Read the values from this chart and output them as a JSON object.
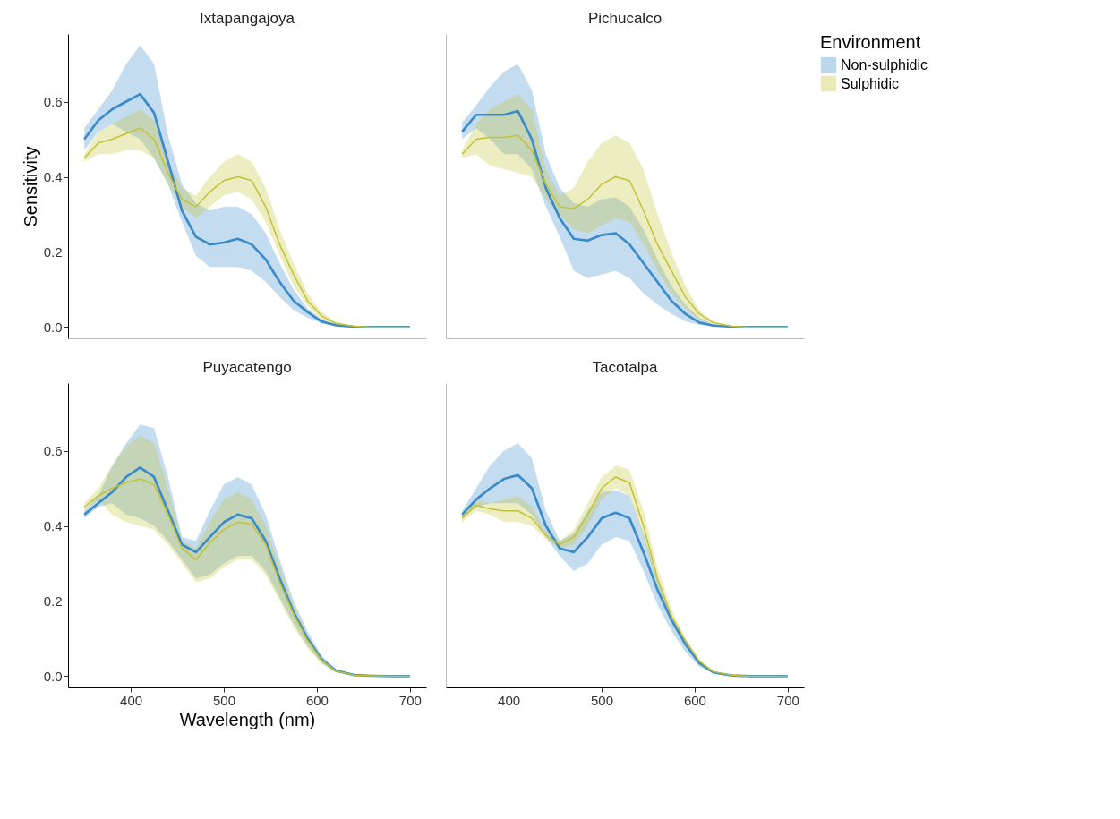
{
  "chart_data": [
    {
      "type": "line",
      "title": "Ixtapangajoya",
      "ylabel": "Sensitivity",
      "grid": false,
      "tick_labels": "y",
      "xlim": [
        332.5,
        717.5
      ],
      "ylim": [
        -0.03,
        0.78
      ],
      "yticks": [
        {
          "value": 0,
          "label": "0.0"
        },
        {
          "value": 0.2,
          "label": "0.2"
        },
        {
          "value": 0.4,
          "label": "0.4"
        },
        {
          "value": 0.6,
          "label": "0.6"
        }
      ],
      "x": [
        350,
        365,
        380,
        395,
        410,
        425,
        440,
        455,
        470,
        485,
        500,
        515,
        530,
        545,
        560,
        575,
        590,
        605,
        620,
        640,
        660,
        680,
        700
      ],
      "series": [
        {
          "color": "#3b8bc9",
          "values": [
            0.5,
            0.55,
            0.58,
            0.6,
            0.62,
            0.57,
            0.44,
            0.31,
            0.24,
            0.22,
            0.225,
            0.235,
            0.22,
            0.18,
            0.12,
            0.07,
            0.04,
            0.015,
            0.005,
            0.001,
            0,
            0,
            0
          ],
          "upper": [
            0.53,
            0.58,
            0.63,
            0.7,
            0.75,
            0.7,
            0.51,
            0.38,
            0.33,
            0.31,
            0.32,
            0.32,
            0.3,
            0.25,
            0.17,
            0.1,
            0.05,
            0.02,
            0.007,
            0.002,
            0,
            0,
            0
          ],
          "lower": [
            0.47,
            0.52,
            0.54,
            0.52,
            0.5,
            0.45,
            0.38,
            0.28,
            0.19,
            0.16,
            0.16,
            0.16,
            0.15,
            0.12,
            0.08,
            0.045,
            0.025,
            0.01,
            0.003,
            0,
            0,
            0,
            0
          ]
        },
        {
          "color": "#c3c234",
          "values": [
            0.45,
            0.49,
            0.5,
            0.515,
            0.53,
            0.5,
            0.41,
            0.34,
            0.32,
            0.36,
            0.39,
            0.4,
            0.39,
            0.32,
            0.22,
            0.14,
            0.07,
            0.03,
            0.01,
            0.002,
            0,
            0,
            0
          ],
          "upper": [
            0.46,
            0.52,
            0.54,
            0.56,
            0.58,
            0.55,
            0.44,
            0.37,
            0.35,
            0.4,
            0.44,
            0.46,
            0.44,
            0.37,
            0.26,
            0.17,
            0.09,
            0.04,
            0.015,
            0.003,
            0,
            0,
            0
          ],
          "lower": [
            0.44,
            0.46,
            0.46,
            0.47,
            0.47,
            0.45,
            0.38,
            0.32,
            0.29,
            0.32,
            0.35,
            0.36,
            0.34,
            0.28,
            0.19,
            0.11,
            0.055,
            0.02,
            0.007,
            0.001,
            0,
            0,
            0
          ]
        }
      ]
    },
    {
      "type": "line",
      "title": "Pichucalco",
      "legend_title": "Environment",
      "legend": "right",
      "grid": false,
      "tick_labels": false,
      "xlim": [
        332.5,
        717.5
      ],
      "ylim": [
        -0.03,
        0.78
      ],
      "x": [
        350,
        365,
        380,
        395,
        410,
        425,
        440,
        455,
        470,
        485,
        500,
        515,
        530,
        545,
        560,
        575,
        590,
        605,
        620,
        640,
        660,
        680,
        700
      ],
      "series": [
        {
          "name": "Non-sulphidic",
          "color": "#3b8bc9",
          "values": [
            0.52,
            0.565,
            0.565,
            0.565,
            0.575,
            0.5,
            0.37,
            0.29,
            0.235,
            0.23,
            0.245,
            0.25,
            0.22,
            0.17,
            0.12,
            0.07,
            0.035,
            0.012,
            0.004,
            0.001,
            0,
            0,
            0
          ],
          "upper": [
            0.545,
            0.59,
            0.64,
            0.68,
            0.7,
            0.63,
            0.46,
            0.37,
            0.33,
            0.32,
            0.34,
            0.345,
            0.32,
            0.26,
            0.18,
            0.11,
            0.06,
            0.025,
            0.008,
            0.002,
            0,
            0,
            0
          ],
          "lower": [
            0.5,
            0.53,
            0.5,
            0.46,
            0.46,
            0.42,
            0.32,
            0.24,
            0.15,
            0.13,
            0.14,
            0.15,
            0.13,
            0.09,
            0.06,
            0.035,
            0.015,
            0.006,
            0.002,
            0,
            0,
            0,
            0
          ]
        },
        {
          "name": "Sulphidic",
          "color": "#c3c234",
          "values": [
            0.46,
            0.5,
            0.505,
            0.505,
            0.51,
            0.47,
            0.38,
            0.32,
            0.315,
            0.34,
            0.38,
            0.4,
            0.39,
            0.31,
            0.22,
            0.15,
            0.08,
            0.035,
            0.012,
            0.002,
            0,
            0,
            0
          ],
          "upper": [
            0.47,
            0.54,
            0.58,
            0.6,
            0.62,
            0.58,
            0.42,
            0.35,
            0.37,
            0.44,
            0.49,
            0.51,
            0.49,
            0.42,
            0.3,
            0.2,
            0.11,
            0.045,
            0.015,
            0.003,
            0,
            0,
            0
          ],
          "lower": [
            0.45,
            0.46,
            0.43,
            0.42,
            0.41,
            0.4,
            0.34,
            0.3,
            0.26,
            0.25,
            0.27,
            0.29,
            0.28,
            0.22,
            0.15,
            0.09,
            0.05,
            0.02,
            0.007,
            0.001,
            0,
            0,
            0
          ]
        }
      ]
    },
    {
      "type": "line",
      "title": "Puyacatengo",
      "xlabel": "Wavelength (nm)",
      "grid": false,
      "xlim": [
        332.5,
        717.5
      ],
      "ylim": [
        -0.03,
        0.78
      ],
      "xticks": [
        400,
        500,
        600,
        700
      ],
      "yticks": [
        {
          "value": 0,
          "label": "0.0"
        },
        {
          "value": 0.2,
          "label": "0.2"
        },
        {
          "value": 0.4,
          "label": "0.4"
        },
        {
          "value": 0.6,
          "label": "0.6"
        }
      ],
      "x": [
        350,
        365,
        380,
        395,
        410,
        425,
        440,
        455,
        470,
        485,
        500,
        515,
        530,
        545,
        560,
        575,
        590,
        605,
        620,
        640,
        660,
        680,
        700
      ],
      "series": [
        {
          "color": "#3b8bc9",
          "values": [
            0.43,
            0.46,
            0.49,
            0.53,
            0.555,
            0.53,
            0.44,
            0.35,
            0.33,
            0.37,
            0.41,
            0.43,
            0.42,
            0.36,
            0.26,
            0.17,
            0.1,
            0.045,
            0.015,
            0.003,
            0.001,
            0,
            0
          ],
          "upper": [
            0.44,
            0.48,
            0.56,
            0.62,
            0.67,
            0.66,
            0.53,
            0.37,
            0.36,
            0.44,
            0.51,
            0.53,
            0.51,
            0.43,
            0.31,
            0.2,
            0.12,
            0.055,
            0.02,
            0.004,
            0.001,
            0,
            0
          ],
          "lower": [
            0.42,
            0.45,
            0.46,
            0.43,
            0.42,
            0.4,
            0.36,
            0.31,
            0.26,
            0.27,
            0.3,
            0.32,
            0.32,
            0.28,
            0.21,
            0.14,
            0.08,
            0.035,
            0.012,
            0.002,
            0,
            0,
            0
          ]
        },
        {
          "color": "#c3c234",
          "values": [
            0.45,
            0.48,
            0.5,
            0.515,
            0.525,
            0.51,
            0.43,
            0.34,
            0.31,
            0.355,
            0.39,
            0.41,
            0.405,
            0.35,
            0.25,
            0.165,
            0.095,
            0.043,
            0.014,
            0.003,
            0.001,
            0,
            0
          ],
          "upper": [
            0.46,
            0.5,
            0.56,
            0.61,
            0.64,
            0.62,
            0.5,
            0.36,
            0.34,
            0.41,
            0.47,
            0.49,
            0.47,
            0.4,
            0.29,
            0.19,
            0.11,
            0.05,
            0.018,
            0.004,
            0.001,
            0,
            0
          ],
          "lower": [
            0.44,
            0.47,
            0.43,
            0.41,
            0.4,
            0.39,
            0.35,
            0.3,
            0.25,
            0.26,
            0.29,
            0.31,
            0.31,
            0.27,
            0.2,
            0.13,
            0.075,
            0.033,
            0.011,
            0.002,
            0,
            0,
            0
          ]
        }
      ]
    },
    {
      "type": "line",
      "title": "Tacotalpa",
      "grid": false,
      "tick_labels": "x",
      "xlim": [
        332.5,
        717.5
      ],
      "ylim": [
        -0.03,
        0.78
      ],
      "xticks": [
        400,
        500,
        600,
        700
      ],
      "x": [
        350,
        365,
        380,
        395,
        410,
        425,
        440,
        455,
        470,
        485,
        500,
        515,
        530,
        545,
        560,
        575,
        590,
        605,
        620,
        640,
        660,
        680,
        700
      ],
      "series": [
        {
          "color": "#3b8bc9",
          "values": [
            0.43,
            0.47,
            0.5,
            0.525,
            0.535,
            0.5,
            0.4,
            0.34,
            0.33,
            0.37,
            0.42,
            0.435,
            0.42,
            0.33,
            0.23,
            0.15,
            0.085,
            0.035,
            0.01,
            0.002,
            0,
            0,
            0
          ],
          "upper": [
            0.44,
            0.5,
            0.56,
            0.6,
            0.62,
            0.58,
            0.44,
            0.36,
            0.38,
            0.44,
            0.49,
            0.495,
            0.48,
            0.38,
            0.26,
            0.16,
            0.095,
            0.04,
            0.012,
            0.002,
            0,
            0,
            0
          ],
          "lower": [
            0.42,
            0.45,
            0.46,
            0.46,
            0.46,
            0.43,
            0.37,
            0.32,
            0.28,
            0.3,
            0.35,
            0.37,
            0.36,
            0.28,
            0.19,
            0.12,
            0.065,
            0.025,
            0.008,
            0.001,
            0,
            0,
            0
          ]
        },
        {
          "color": "#c3c234",
          "values": [
            0.42,
            0.455,
            0.445,
            0.44,
            0.44,
            0.42,
            0.375,
            0.35,
            0.37,
            0.43,
            0.5,
            0.53,
            0.515,
            0.4,
            0.26,
            0.16,
            0.095,
            0.04,
            0.012,
            0.002,
            0,
            0,
            0
          ],
          "upper": [
            0.43,
            0.47,
            0.46,
            0.47,
            0.48,
            0.45,
            0.385,
            0.36,
            0.39,
            0.46,
            0.53,
            0.56,
            0.55,
            0.44,
            0.29,
            0.18,
            0.1,
            0.045,
            0.014,
            0.003,
            0,
            0,
            0
          ],
          "lower": [
            0.41,
            0.44,
            0.43,
            0.41,
            0.41,
            0.4,
            0.365,
            0.34,
            0.35,
            0.4,
            0.47,
            0.5,
            0.48,
            0.37,
            0.24,
            0.145,
            0.085,
            0.035,
            0.01,
            0.002,
            0,
            0,
            0
          ]
        }
      ]
    }
  ]
}
